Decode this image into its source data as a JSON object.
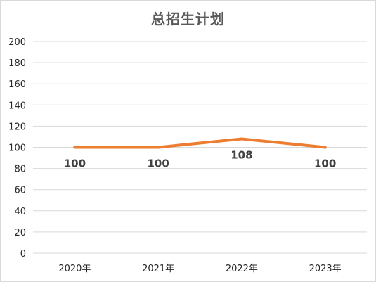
{
  "chart_data": {
    "type": "line",
    "title": "总招生计划",
    "categories": [
      "2020年",
      "2021年",
      "2022年",
      "2023年"
    ],
    "series": [
      {
        "values": [
          100,
          100,
          108,
          100
        ]
      }
    ],
    "data_labels": [
      "100",
      "100",
      "108",
      "100"
    ],
    "ylim": [
      0,
      200
    ],
    "y_ticks": [
      "0",
      "20",
      "40",
      "60",
      "80",
      "100",
      "120",
      "140",
      "160",
      "180",
      "200"
    ],
    "grid": true,
    "legend": "none",
    "line_color": "#ed7d31",
    "grid_color": "#d9d9d9"
  }
}
